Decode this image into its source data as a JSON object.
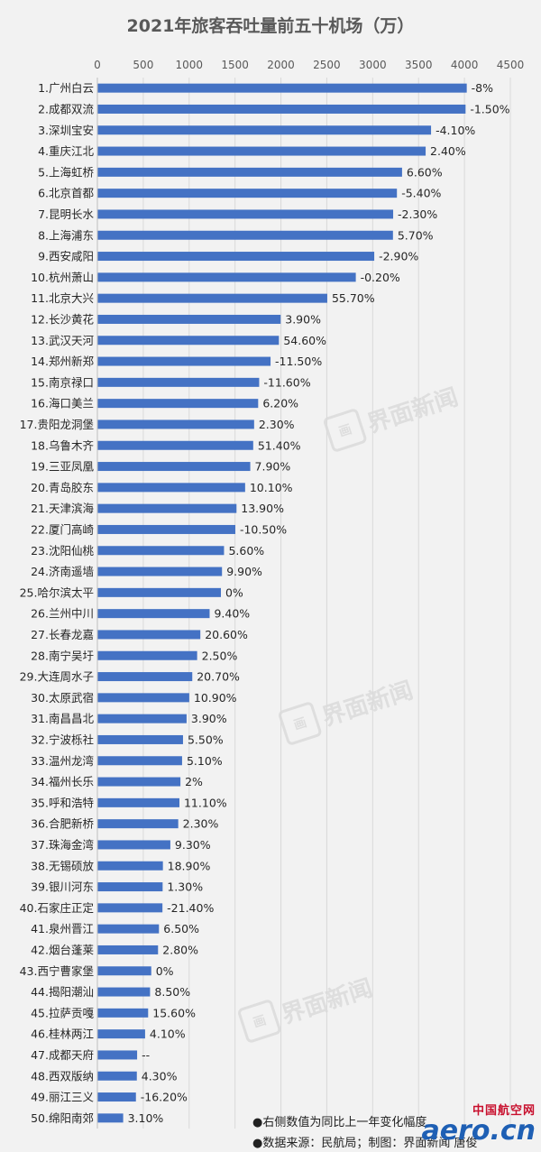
{
  "chart_data": {
    "type": "bar",
    "orientation": "horizontal",
    "title": "2021年旅客吞吐量前五十机场（万）",
    "xlim": [
      0,
      4500
    ],
    "xticks": [
      "0",
      "500",
      "1000",
      "1500",
      "2000",
      "2500",
      "3000",
      "3500",
      "4000",
      "4500"
    ],
    "bar_color": "#4472c4",
    "categories": [
      "1.广州白云",
      "2.成都双流",
      "3.深圳宝安",
      "4.重庆江北",
      "5.上海虹桥",
      "6.北京首都",
      "7.昆明长水",
      "8.上海浦东",
      "9.西安咸阳",
      "10.杭州萧山",
      "11.北京大兴",
      "12.长沙黄花",
      "13.武汉天河",
      "14.郑州新郑",
      "15.南京禄口",
      "16.海口美兰",
      "17.贵阳龙洞堡",
      "18.乌鲁木齐",
      "19.三亚凤凰",
      "20.青岛胶东",
      "21.天津滨海",
      "22.厦门高崎",
      "23.沈阳仙桃",
      "24.济南遥墙",
      "25.哈尔滨太平",
      "26.兰州中川",
      "27.长春龙嘉",
      "28.南宁吴圩",
      "29.大连周水子",
      "30.太原武宿",
      "31.南昌昌北",
      "32.宁波栎社",
      "33.温州龙湾",
      "34.福州长乐",
      "35.呼和浩特",
      "36.合肥新桥",
      "37.珠海金湾",
      "38.无锡硕放",
      "39.银川河东",
      "40.石家庄正定",
      "41.泉州晋江",
      "42.烟台蓬莱",
      "43.西宁曹家堡",
      "44.揭阳潮汕",
      "45.拉萨贡嘎",
      "46.桂林两江",
      "47.成都天府",
      "48.西双版纳",
      "49.丽江三义",
      "50.绵阳南郊"
    ],
    "values": [
      4025,
      4012,
      3636,
      3577,
      3320,
      3264,
      3223,
      3221,
      3017,
      2816,
      2505,
      1997,
      1978,
      1887,
      1763,
      1752,
      1708,
      1698,
      1666,
      1610,
      1516,
      1503,
      1380,
      1358,
      1346,
      1223,
      1122,
      1087,
      1034,
      1001,
      972,
      933,
      923,
      905,
      894,
      881,
      795,
      714,
      711,
      709,
      671,
      661,
      587,
      574,
      553,
      520,
      433,
      430,
      420,
      281
    ],
    "labels": [
      "-8%",
      "-1.50%",
      "-4.10%",
      "2.40%",
      "6.60%",
      "-5.40%",
      "-2.30%",
      "5.70%",
      "-2.90%",
      "-0.20%",
      "55.70%",
      "3.90%",
      "54.60%",
      "-11.50%",
      "-11.60%",
      "6.20%",
      "2.30%",
      "51.40%",
      "7.90%",
      "10.10%",
      "13.90%",
      "-10.50%",
      "5.60%",
      "9.90%",
      "0%",
      "9.40%",
      "20.60%",
      "2.50%",
      "20.70%",
      "10.90%",
      "3.90%",
      "5.50%",
      "5.10%",
      "2%",
      "11.10%",
      "2.30%",
      "9.30%",
      "18.90%",
      "1.30%",
      "-21.40%",
      "6.50%",
      "2.80%",
      "0%",
      "8.50%",
      "15.60%",
      "4.10%",
      "--",
      "4.30%",
      "-16.20%",
      "3.10%"
    ],
    "grid": true
  },
  "notes": [
    "●右侧数值为同比上一年变化幅度",
    "●数据来源：民航局；制图：界面新闻 唐俊"
  ],
  "watermark": {
    "text": "界面新闻",
    "logo": "画"
  },
  "logo": {
    "top": "中国航空网",
    "main": "aero.cn"
  }
}
